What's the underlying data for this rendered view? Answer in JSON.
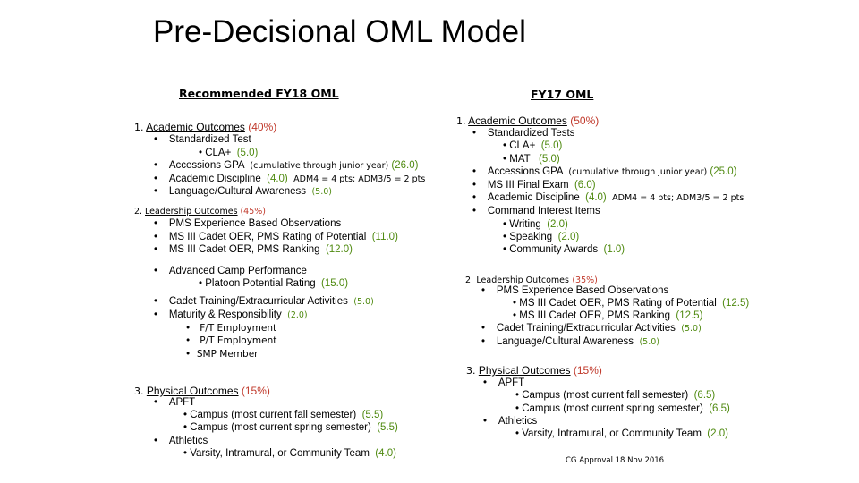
{
  "title": "Pre-Decisional OML Model",
  "left": {
    "header": "Recommended FY18 OML",
    "s1": {
      "num": "1.",
      "name": "Academic Outcomes",
      "pct": "(40%)",
      "items": [
        {
          "bullet": "•",
          "text": "Standardized Test"
        },
        {
          "bullet": "•",
          "text": "CLA+",
          "pts": "(5.0)"
        },
        {
          "bullet": "•",
          "text": "Accessions GPA",
          "note": "(cumulative through junior year)",
          "pts": "(26.0)"
        },
        {
          "bullet": "•",
          "text": "Academic Discipline",
          "pts": "(4.0)",
          "note": "ADM4 = 4 pts; ADM3/5 = 2 pts"
        },
        {
          "bullet": "•",
          "text": "Language/Cultural Awareness",
          "pts": "(5.0)"
        }
      ]
    },
    "s2": {
      "num": "2.",
      "name": "Leadership Outcomes",
      "pct": "(45%)",
      "items": [
        {
          "bullet": "•",
          "text": "PMS Experience Based Observations"
        },
        {
          "bullet": "•",
          "text": "MS III Cadet OER, PMS Rating of Potential",
          "pts": "(11.0)"
        },
        {
          "bullet": "•",
          "text": "MS III Cadet OER, PMS Ranking",
          "pts": "(12.0)"
        },
        {
          "bullet": "•",
          "text": "Advanced Camp Performance"
        },
        {
          "bullet": "•",
          "text": "Platoon Potential Rating",
          "pts": "(15.0)"
        },
        {
          "bullet": "•",
          "text": "Cadet Training/Extracurricular Activities",
          "pts": "(5.0)"
        },
        {
          "bullet": "•",
          "text": "Maturity & Responsibility",
          "pts": "(2.0)"
        },
        {
          "bullet": "•",
          "text": "F/T Employment"
        },
        {
          "bullet": "•",
          "text": "P/T Employment"
        },
        {
          "bullet": "•",
          "text": "SMP Member"
        }
      ]
    },
    "s3": {
      "num": "3.",
      "name": "Physical Outcomes",
      "pct": "(15%)",
      "items": [
        {
          "bullet": "•",
          "text": "APFT"
        },
        {
          "bullet": "•",
          "text": "Campus (most current fall semester)",
          "pts": "(5.5)"
        },
        {
          "bullet": "•",
          "text": "Campus (most current spring semester)",
          "pts": "(5.5)"
        },
        {
          "bullet": "•",
          "text": "Athletics"
        },
        {
          "bullet": "•",
          "text": "Varsity, Intramural, or Community Team",
          "pts": "(4.0)"
        }
      ]
    }
  },
  "right": {
    "header": "FY17 OML",
    "s1": {
      "num": "1.",
      "name": "Academic Outcomes",
      "pct": "(50%)",
      "items": [
        {
          "bullet": "•",
          "text": "Standardized Tests"
        },
        {
          "bullet": "•",
          "text": "CLA+",
          "pts": "(5.0)"
        },
        {
          "bullet": "•",
          "text": "MAT",
          "pts": "(5.0)"
        },
        {
          "bullet": "•",
          "text": "Accessions GPA",
          "note": "(cumulative through junior year)",
          "pts": "(25.0)"
        },
        {
          "bullet": "•",
          "text": "MS III Final Exam",
          "pts": "(6.0)"
        },
        {
          "bullet": "•",
          "text": "Academic Discipline",
          "pts": "(4.0)",
          "note": "ADM4 = 4 pts; ADM3/5 = 2 pts"
        },
        {
          "bullet": "•",
          "text": "Command Interest Items"
        },
        {
          "bullet": "•",
          "text": "Writing",
          "pts": "(2.0)"
        },
        {
          "bullet": "•",
          "text": "Speaking",
          "pts": "(2.0)"
        },
        {
          "bullet": "•",
          "text": "Community Awards",
          "pts": "(1.0)"
        }
      ]
    },
    "s2": {
      "num": "2.",
      "name": "Leadership Outcomes",
      "pct": "(35%)",
      "items": [
        {
          "bullet": "•",
          "text": "PMS Experience Based Observations"
        },
        {
          "bullet": "•",
          "text": "MS III Cadet OER, PMS Rating of Potential",
          "pts": "(12.5)"
        },
        {
          "bullet": "•",
          "text": "MS III Cadet OER, PMS Ranking",
          "pts": "(12.5)"
        },
        {
          "bullet": "•",
          "text": "Cadet Training/Extracurricular Activities",
          "pts": "(5.0)"
        },
        {
          "bullet": "•",
          "text": "Language/Cultural Awareness",
          "pts": "(5.0)"
        }
      ]
    },
    "s3": {
      "num": "3.",
      "name": "Physical Outcomes",
      "pct": "(15%)",
      "items": [
        {
          "bullet": "•",
          "text": "APFT"
        },
        {
          "bullet": "•",
          "text": "Campus (most current fall semester)",
          "pts": "(6.5)"
        },
        {
          "bullet": "•",
          "text": "Campus (most current spring semester)",
          "pts": "(6.5)"
        },
        {
          "bullet": "•",
          "text": "Athletics"
        },
        {
          "bullet": "•",
          "text": "Varsity, Intramural, or Community Team",
          "pts": "(2.0)"
        }
      ]
    }
  },
  "footer": "CG Approval 18 Nov 2016",
  "colors": {
    "points": "#4f8a10",
    "percent": "#c0392b"
  }
}
